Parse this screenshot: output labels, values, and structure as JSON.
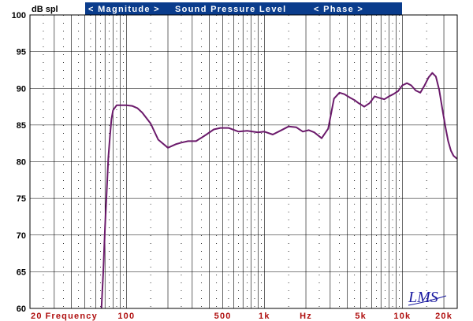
{
  "header": {
    "magnitude_label": "< Magnitude >",
    "spl_label": "Sound Pressure Level",
    "phase_label": "< Phase >",
    "header_bg": "#0a3c8c"
  },
  "logo": "LMS",
  "chart_data": {
    "type": "line",
    "title": "",
    "ylabel": "dB spl",
    "xlabel": "Frequency",
    "xscale": "log",
    "xlim": [
      20,
      25000
    ],
    "ylim": [
      60,
      100
    ],
    "y_ticks": [
      {
        "value": 100,
        "label": "100"
      },
      {
        "value": 95,
        "label": "95"
      },
      {
        "value": 90,
        "label": "90"
      },
      {
        "value": 85,
        "label": "85"
      },
      {
        "value": 80,
        "label": "80"
      },
      {
        "value": 75,
        "label": "75"
      },
      {
        "value": 70,
        "label": "70"
      },
      {
        "value": 65,
        "label": "65"
      },
      {
        "value": 60,
        "label": "60"
      }
    ],
    "x_ticks": [
      {
        "value": 20,
        "label": "20"
      },
      {
        "value": 40,
        "label": "Frequency"
      },
      {
        "value": 100,
        "label": "100"
      },
      {
        "value": 500,
        "label": "500"
      },
      {
        "value": 1000,
        "label": "1k"
      },
      {
        "value": 2000,
        "label": "Hz"
      },
      {
        "value": 5000,
        "label": "5k"
      },
      {
        "value": 10000,
        "label": "10k"
      },
      {
        "value": 20000,
        "label": "20k"
      }
    ],
    "grid": true,
    "line_color": "#6b1a6b",
    "grid_color": "#000000",
    "series": [
      {
        "x": [
          66,
          68,
          70,
          72,
          74,
          76,
          78,
          80,
          85,
          90,
          100,
          110,
          120,
          130,
          150,
          170,
          200,
          230,
          250,
          280,
          320,
          380,
          430,
          480,
          550,
          650,
          750,
          900,
          1000,
          1150,
          1300,
          1500,
          1700,
          1900,
          2100,
          2300,
          2600,
          2900,
          3200,
          3500,
          3800,
          4200,
          4500,
          4800,
          5300,
          5800,
          6300,
          6800,
          7400,
          8000,
          8600,
          9300,
          10000,
          10800,
          11600,
          12500,
          13500,
          14500,
          15500,
          16500,
          17500,
          18500,
          19500,
          20500,
          21500,
          22500,
          23500,
          24500,
          25000
        ],
        "y": [
          60,
          65,
          71,
          76,
          80.5,
          83.5,
          85.8,
          87,
          87.7,
          87.7,
          87.7,
          87.6,
          87.3,
          86.7,
          85.2,
          83,
          81.9,
          82.4,
          82.6,
          82.8,
          82.8,
          83.7,
          84.4,
          84.6,
          84.6,
          84.1,
          84.2,
          84,
          84.1,
          83.7,
          84.2,
          84.8,
          84.7,
          84.1,
          84.3,
          84,
          83.2,
          84.5,
          88.6,
          89.4,
          89.2,
          88.7,
          88.4,
          88,
          87.5,
          88,
          88.9,
          88.7,
          88.5,
          88.9,
          89.2,
          89.6,
          90.4,
          90.7,
          90.4,
          89.7,
          89.4,
          90.4,
          91.5,
          92.1,
          91.6,
          89.8,
          87.2,
          84.8,
          82.8,
          81.5,
          80.8,
          80.5,
          80.4
        ]
      }
    ]
  }
}
